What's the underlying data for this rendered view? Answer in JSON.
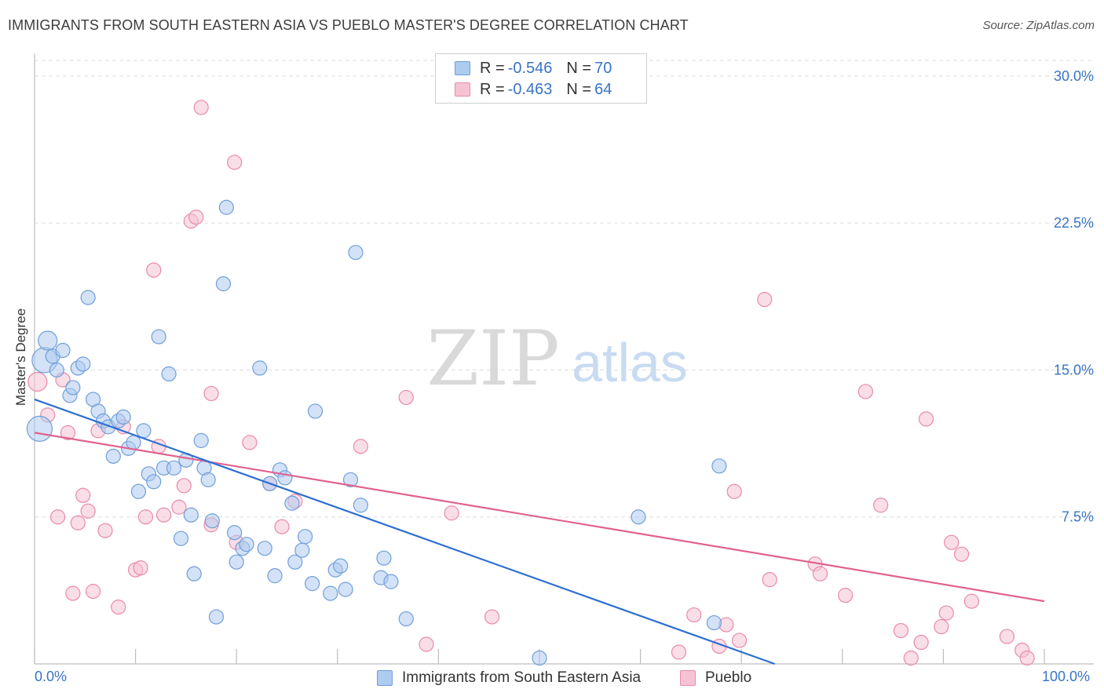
{
  "title": "IMMIGRANTS FROM SOUTH EASTERN ASIA VS PUEBLO MASTER'S DEGREE CORRELATION CHART",
  "source": "Source: ZipAtlas.com",
  "watermark": {
    "zip": "ZIP",
    "atlas": "atlas"
  },
  "legend": {
    "series": [
      {
        "r_label": "R =",
        "r_value": "-0.546",
        "n_label": "N =",
        "n_value": "70"
      },
      {
        "r_label": "R =",
        "r_value": "-0.463",
        "n_label": "N =",
        "n_value": "64"
      }
    ]
  },
  "bottom_legend": [
    "Immigrants from South Eastern Asia",
    "Pueblo"
  ],
  "colors": {
    "blue_fill": "#aecbf0",
    "blue_stroke": "#6f9fd8",
    "blue_line": "#2d6fd1",
    "pink_fill": "#f6c3d3",
    "pink_stroke": "#e98aaa",
    "pink_line": "#e0628e",
    "axis_text": "#3a74c4",
    "grid": "#dddddd"
  },
  "chart_data": {
    "type": "scatter",
    "title": "IMMIGRANTS FROM SOUTH EASTERN ASIA VS PUEBLO MASTER'S DEGREE CORRELATION CHART",
    "xlabel": "",
    "ylabel": "Master's Degree",
    "xlim": [
      0,
      100
    ],
    "ylim": [
      0,
      30.8
    ],
    "x_tick_labels": [
      "0.0%",
      "100.0%"
    ],
    "y_ticks": [
      7.5,
      15.0,
      22.5,
      30.0
    ],
    "y_tick_labels": [
      "7.5%",
      "15.0%",
      "22.5%",
      "30.0%"
    ],
    "grid": true,
    "legend_position": "top-center",
    "series": [
      {
        "name": "Immigrants from South Eastern Asia",
        "trend": {
          "x": [
            0,
            73.3
          ],
          "y": [
            13.5,
            0
          ]
        },
        "points": [
          {
            "x": 0.5,
            "y": 12.0,
            "s": 3
          },
          {
            "x": 1.0,
            "y": 15.5,
            "s": 3
          },
          {
            "x": 1.3,
            "y": 16.5,
            "s": 2
          },
          {
            "x": 1.8,
            "y": 15.7,
            "s": 1
          },
          {
            "x": 2.2,
            "y": 15.0,
            "s": 1
          },
          {
            "x": 2.8,
            "y": 16.0,
            "s": 1
          },
          {
            "x": 3.5,
            "y": 13.7,
            "s": 1
          },
          {
            "x": 3.8,
            "y": 14.1,
            "s": 1
          },
          {
            "x": 4.3,
            "y": 15.1,
            "s": 1
          },
          {
            "x": 4.8,
            "y": 15.3,
            "s": 1
          },
          {
            "x": 5.3,
            "y": 18.7,
            "s": 1
          },
          {
            "x": 5.8,
            "y": 13.5,
            "s": 1
          },
          {
            "x": 6.3,
            "y": 12.9,
            "s": 1
          },
          {
            "x": 6.8,
            "y": 12.4,
            "s": 1
          },
          {
            "x": 7.3,
            "y": 12.1,
            "s": 1
          },
          {
            "x": 7.8,
            "y": 10.6,
            "s": 1
          },
          {
            "x": 8.3,
            "y": 12.4,
            "s": 1
          },
          {
            "x": 8.8,
            "y": 12.6,
            "s": 1
          },
          {
            "x": 9.3,
            "y": 11.0,
            "s": 1
          },
          {
            "x": 9.8,
            "y": 11.3,
            "s": 1
          },
          {
            "x": 10.3,
            "y": 8.8,
            "s": 1
          },
          {
            "x": 10.8,
            "y": 11.9,
            "s": 1
          },
          {
            "x": 11.3,
            "y": 9.7,
            "s": 1
          },
          {
            "x": 11.8,
            "y": 9.3,
            "s": 1
          },
          {
            "x": 12.3,
            "y": 16.7,
            "s": 1
          },
          {
            "x": 12.8,
            "y": 10.0,
            "s": 1
          },
          {
            "x": 13.3,
            "y": 14.8,
            "s": 1
          },
          {
            "x": 13.8,
            "y": 10.0,
            "s": 1
          },
          {
            "x": 14.5,
            "y": 6.4,
            "s": 1
          },
          {
            "x": 15.0,
            "y": 10.4,
            "s": 1
          },
          {
            "x": 15.5,
            "y": 7.6,
            "s": 1
          },
          {
            "x": 15.8,
            "y": 4.6,
            "s": 1
          },
          {
            "x": 16.5,
            "y": 11.4,
            "s": 1
          },
          {
            "x": 16.8,
            "y": 10.0,
            "s": 1
          },
          {
            "x": 17.2,
            "y": 9.4,
            "s": 1
          },
          {
            "x": 17.6,
            "y": 7.3,
            "s": 1
          },
          {
            "x": 18.0,
            "y": 2.4,
            "s": 1
          },
          {
            "x": 18.7,
            "y": 19.4,
            "s": 1
          },
          {
            "x": 19.0,
            "y": 23.3,
            "s": 1
          },
          {
            "x": 19.8,
            "y": 6.7,
            "s": 1
          },
          {
            "x": 20.0,
            "y": 5.2,
            "s": 1
          },
          {
            "x": 20.6,
            "y": 5.9,
            "s": 1
          },
          {
            "x": 21.0,
            "y": 6.1,
            "s": 1
          },
          {
            "x": 22.3,
            "y": 15.1,
            "s": 1
          },
          {
            "x": 22.8,
            "y": 5.9,
            "s": 1
          },
          {
            "x": 23.3,
            "y": 9.2,
            "s": 1
          },
          {
            "x": 23.8,
            "y": 4.5,
            "s": 1
          },
          {
            "x": 24.3,
            "y": 9.9,
            "s": 1
          },
          {
            "x": 24.8,
            "y": 9.5,
            "s": 1
          },
          {
            "x": 25.5,
            "y": 8.2,
            "s": 1
          },
          {
            "x": 25.8,
            "y": 5.2,
            "s": 1
          },
          {
            "x": 26.5,
            "y": 5.8,
            "s": 1
          },
          {
            "x": 26.8,
            "y": 6.5,
            "s": 1
          },
          {
            "x": 27.5,
            "y": 4.1,
            "s": 1
          },
          {
            "x": 27.8,
            "y": 12.9,
            "s": 1
          },
          {
            "x": 29.3,
            "y": 3.6,
            "s": 1
          },
          {
            "x": 29.8,
            "y": 4.8,
            "s": 1
          },
          {
            "x": 30.3,
            "y": 5.0,
            "s": 1
          },
          {
            "x": 30.8,
            "y": 3.8,
            "s": 1
          },
          {
            "x": 31.3,
            "y": 9.4,
            "s": 1
          },
          {
            "x": 31.8,
            "y": 21.0,
            "s": 1
          },
          {
            "x": 32.3,
            "y": 8.1,
            "s": 1
          },
          {
            "x": 34.3,
            "y": 4.4,
            "s": 1
          },
          {
            "x": 34.6,
            "y": 5.4,
            "s": 1
          },
          {
            "x": 35.3,
            "y": 4.2,
            "s": 1
          },
          {
            "x": 36.8,
            "y": 2.3,
            "s": 1
          },
          {
            "x": 50.0,
            "y": 0.3,
            "s": 1
          },
          {
            "x": 59.8,
            "y": 7.5,
            "s": 1
          },
          {
            "x": 67.3,
            "y": 2.1,
            "s": 1
          },
          {
            "x": 67.8,
            "y": 10.1,
            "s": 1
          }
        ]
      },
      {
        "name": "Pueblo",
        "trend": {
          "x": [
            0,
            100
          ],
          "y": [
            11.8,
            3.2
          ]
        },
        "points": [
          {
            "x": 0.3,
            "y": 14.4,
            "s": 2
          },
          {
            "x": 1.3,
            "y": 12.7,
            "s": 1
          },
          {
            "x": 2.3,
            "y": 7.5,
            "s": 1
          },
          {
            "x": 2.8,
            "y": 14.5,
            "s": 1
          },
          {
            "x": 3.3,
            "y": 11.8,
            "s": 1
          },
          {
            "x": 3.8,
            "y": 3.6,
            "s": 1
          },
          {
            "x": 4.3,
            "y": 7.2,
            "s": 1
          },
          {
            "x": 4.8,
            "y": 8.6,
            "s": 1
          },
          {
            "x": 5.3,
            "y": 7.8,
            "s": 1
          },
          {
            "x": 5.8,
            "y": 3.7,
            "s": 1
          },
          {
            "x": 6.3,
            "y": 11.9,
            "s": 1
          },
          {
            "x": 7.0,
            "y": 6.8,
            "s": 1
          },
          {
            "x": 8.3,
            "y": 2.9,
            "s": 1
          },
          {
            "x": 8.8,
            "y": 12.1,
            "s": 1
          },
          {
            "x": 10.0,
            "y": 4.8,
            "s": 1
          },
          {
            "x": 10.5,
            "y": 4.9,
            "s": 1
          },
          {
            "x": 11.0,
            "y": 7.5,
            "s": 1
          },
          {
            "x": 11.8,
            "y": 20.1,
            "s": 1
          },
          {
            "x": 12.3,
            "y": 11.1,
            "s": 1
          },
          {
            "x": 12.8,
            "y": 7.6,
            "s": 1
          },
          {
            "x": 14.3,
            "y": 8.0,
            "s": 1
          },
          {
            "x": 14.8,
            "y": 9.1,
            "s": 1
          },
          {
            "x": 15.5,
            "y": 22.6,
            "s": 1
          },
          {
            "x": 16.0,
            "y": 22.8,
            "s": 1
          },
          {
            "x": 16.5,
            "y": 28.4,
            "s": 1
          },
          {
            "x": 17.5,
            "y": 13.8,
            "s": 1
          },
          {
            "x": 17.5,
            "y": 7.1,
            "s": 1
          },
          {
            "x": 19.8,
            "y": 25.6,
            "s": 1
          },
          {
            "x": 20.0,
            "y": 6.2,
            "s": 1
          },
          {
            "x": 21.3,
            "y": 11.3,
            "s": 1
          },
          {
            "x": 23.3,
            "y": 9.2,
            "s": 1
          },
          {
            "x": 24.5,
            "y": 7.0,
            "s": 1
          },
          {
            "x": 25.8,
            "y": 8.3,
            "s": 1
          },
          {
            "x": 32.3,
            "y": 11.1,
            "s": 1
          },
          {
            "x": 36.8,
            "y": 13.6,
            "s": 1
          },
          {
            "x": 38.8,
            "y": 1.0,
            "s": 1
          },
          {
            "x": 41.3,
            "y": 7.7,
            "s": 1
          },
          {
            "x": 45.3,
            "y": 2.4,
            "s": 1
          },
          {
            "x": 65.3,
            "y": 2.5,
            "s": 1
          },
          {
            "x": 63.8,
            "y": 0.6,
            "s": 1
          },
          {
            "x": 67.8,
            "y": 0.9,
            "s": 1
          },
          {
            "x": 68.5,
            "y": 2.0,
            "s": 1
          },
          {
            "x": 69.3,
            "y": 8.8,
            "s": 1
          },
          {
            "x": 69.8,
            "y": 1.2,
            "s": 1
          },
          {
            "x": 72.3,
            "y": 18.6,
            "s": 1
          },
          {
            "x": 72.8,
            "y": 4.3,
            "s": 1
          },
          {
            "x": 77.3,
            "y": 5.1,
            "s": 1
          },
          {
            "x": 77.8,
            "y": 4.6,
            "s": 1
          },
          {
            "x": 80.3,
            "y": 3.5,
            "s": 1
          },
          {
            "x": 82.3,
            "y": 13.9,
            "s": 1
          },
          {
            "x": 83.8,
            "y": 8.1,
            "s": 1
          },
          {
            "x": 85.8,
            "y": 1.7,
            "s": 1
          },
          {
            "x": 86.8,
            "y": 0.3,
            "s": 1
          },
          {
            "x": 87.8,
            "y": 1.1,
            "s": 1
          },
          {
            "x": 88.3,
            "y": 12.5,
            "s": 1
          },
          {
            "x": 89.8,
            "y": 1.9,
            "s": 1
          },
          {
            "x": 90.3,
            "y": 2.6,
            "s": 1
          },
          {
            "x": 90.8,
            "y": 6.2,
            "s": 1
          },
          {
            "x": 91.8,
            "y": 5.6,
            "s": 1
          },
          {
            "x": 92.8,
            "y": 3.2,
            "s": 1
          },
          {
            "x": 96.3,
            "y": 1.4,
            "s": 1
          },
          {
            "x": 97.8,
            "y": 0.7,
            "s": 1
          },
          {
            "x": 98.3,
            "y": 0.3,
            "s": 1
          }
        ]
      }
    ]
  }
}
